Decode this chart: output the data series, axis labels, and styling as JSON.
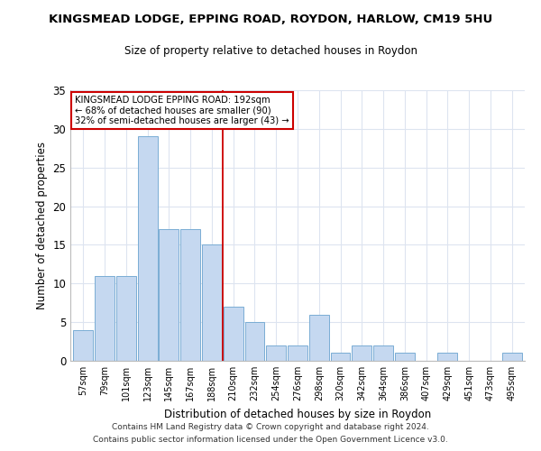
{
  "title": "KINGSMEAD LODGE, EPPING ROAD, ROYDON, HARLOW, CM19 5HU",
  "subtitle": "Size of property relative to detached houses in Roydon",
  "xlabel": "Distribution of detached houses by size in Roydon",
  "ylabel": "Number of detached properties",
  "categories": [
    "57sqm",
    "79sqm",
    "101sqm",
    "123sqm",
    "145sqm",
    "167sqm",
    "188sqm",
    "210sqm",
    "232sqm",
    "254sqm",
    "276sqm",
    "298sqm",
    "320sqm",
    "342sqm",
    "364sqm",
    "386sqm",
    "407sqm",
    "429sqm",
    "451sqm",
    "473sqm",
    "495sqm"
  ],
  "values": [
    4,
    11,
    11,
    29,
    17,
    17,
    15,
    7,
    5,
    2,
    2,
    6,
    1,
    2,
    2,
    1,
    0,
    1,
    0,
    0,
    1
  ],
  "bar_color": "#c5d8f0",
  "bar_edge_color": "#7aadd4",
  "vline_x": 6.5,
  "vline_color": "#cc0000",
  "ylim": [
    0,
    35
  ],
  "yticks": [
    0,
    5,
    10,
    15,
    20,
    25,
    30,
    35
  ],
  "annotation_title": "KINGSMEAD LODGE EPPING ROAD: 192sqm",
  "annotation_line1": "← 68% of detached houses are smaller (90)",
  "annotation_line2": "32% of semi-detached houses are larger (43) →",
  "annotation_box_color": "#ffffff",
  "annotation_box_edge": "#cc0000",
  "footer1": "Contains HM Land Registry data © Crown copyright and database right 2024.",
  "footer2": "Contains public sector information licensed under the Open Government Licence v3.0.",
  "background_color": "#ffffff",
  "grid_color": "#dde4f0"
}
